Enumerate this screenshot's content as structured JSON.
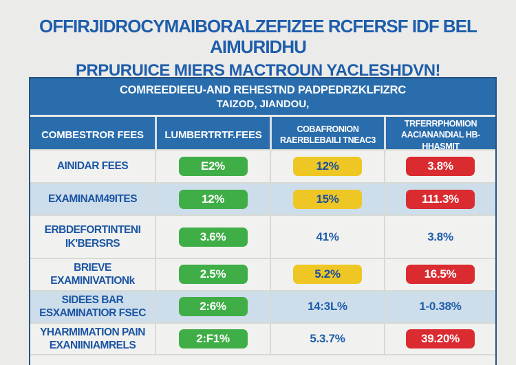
{
  "title": {
    "line1": "OFFIRJIDROCYMAIBORALZEFIZEE RCFERSF IDF BEL AIMURIDHU",
    "line2": "PRPURUICE MIERS MACTROUN YACLESHDVN!"
  },
  "chart_data": {
    "type": "table",
    "banner": {
      "line1": "COMREEDIEEU-AND REHESTND PADPEDRZKLFIZRC",
      "line2": "TAIZOD, JIANDOU,"
    },
    "columns": [
      {
        "label": "COMBESTROR FEES"
      },
      {
        "label": "LUMBERTRTF.FEES"
      },
      {
        "label": "COBAFRONION\nRAERBLEBAILI TNEAC3"
      },
      {
        "label": "TRFERRPHOMION\nAACIANANDIAL HB-HHASMIT"
      }
    ],
    "rows": [
      {
        "bg": "light",
        "label": "AINIDAR FEES",
        "values": [
          {
            "text": "E2%",
            "style": "green"
          },
          {
            "text": "12%",
            "style": "yellow"
          },
          {
            "text": "3.8%",
            "style": "red"
          }
        ]
      },
      {
        "bg": "blue",
        "label": "EXAMINAM49ITES",
        "values": [
          {
            "text": "12%",
            "style": "green"
          },
          {
            "text": "15%",
            "style": "yellow"
          },
          {
            "text": "111.3%",
            "style": "red"
          }
        ]
      },
      {
        "bg": "light",
        "label": "ERBDEFORTINTENI\nIK'BERSRS",
        "values": [
          {
            "text": "3.6%",
            "style": "green"
          },
          {
            "text": "41%",
            "style": "plain"
          },
          {
            "text": "3.8%",
            "style": "plain"
          }
        ]
      },
      {
        "bg": "light",
        "label": "BRIEVE\nEXAMINIVATIONk",
        "values": [
          {
            "text": "2.5%",
            "style": "green"
          },
          {
            "text": "5.2%",
            "style": "yellow"
          },
          {
            "text": "16.5%",
            "style": "red"
          }
        ]
      },
      {
        "bg": "blue",
        "label": "SIDEES BAR\nESXAMINATIOR FSEC",
        "values": [
          {
            "text": "2:6%",
            "style": "green"
          },
          {
            "text": "14:3L%",
            "style": "plain"
          },
          {
            "text": "1-0.38%",
            "style": "plain"
          }
        ]
      },
      {
        "bg": "light",
        "label": "YHARMIMATION PAIN\nEXANIINIAMRELS",
        "values": [
          {
            "text": "2:F1%",
            "style": "green"
          },
          {
            "text": "5.3.7%",
            "style": "plain"
          },
          {
            "text": "39.20%",
            "style": "red"
          }
        ]
      }
    ]
  },
  "colors": {
    "page_bg": "#ebebe9",
    "title_blue": "#1e5dab",
    "header_blue": "#2a6dad",
    "label_blue": "#1b55a4",
    "green": "#3fae47",
    "yellow": "#eec724",
    "red": "#da2b30",
    "row_blue_bg": "#cdddea",
    "row_light_bg": "#f1f1ef"
  }
}
